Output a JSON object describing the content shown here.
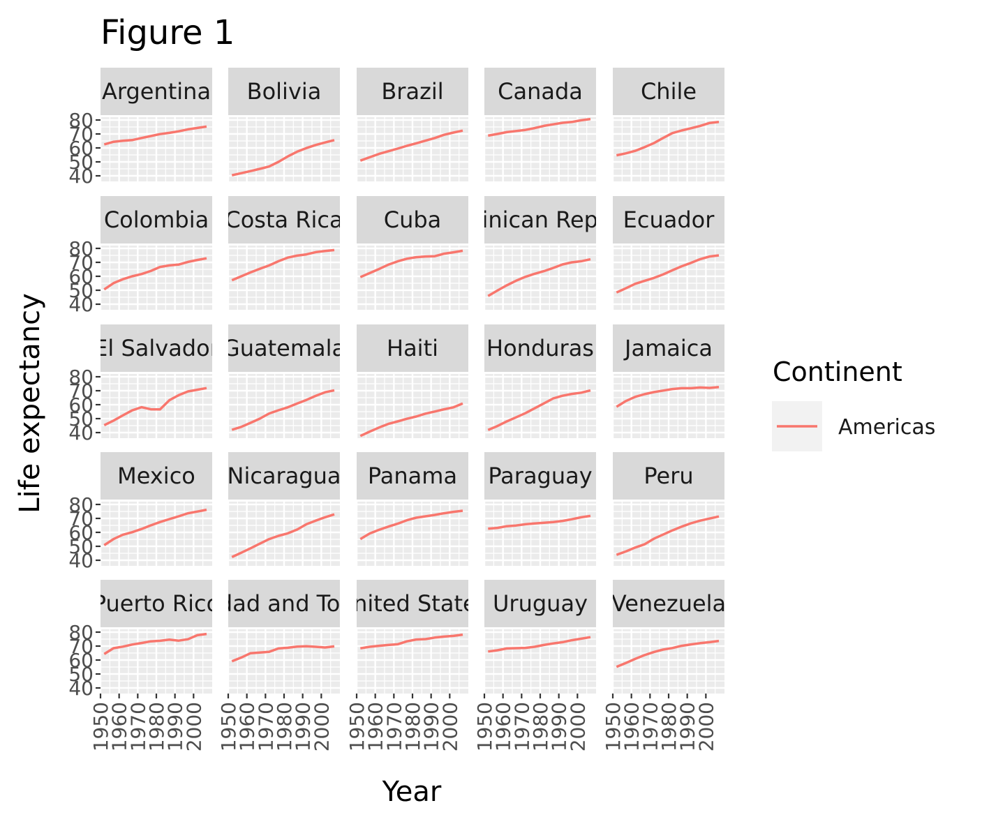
{
  "chart_data": {
    "type": "line",
    "title": "Figure 1",
    "xlabel": "Year",
    "ylabel": "Life expectancy",
    "x": [
      1952,
      1957,
      1962,
      1967,
      1972,
      1977,
      1982,
      1987,
      1992,
      1997,
      2002,
      2007
    ],
    "xlim": [
      1950,
      2010
    ],
    "ylim": [
      36,
      82
    ],
    "x_ticks": [
      "1950",
      "1960",
      "1970",
      "1980",
      "1990",
      "2000"
    ],
    "y_ticks": [
      "40",
      "50",
      "60",
      "70",
      "80"
    ],
    "grid": true,
    "legend": {
      "title": "Continent",
      "position": "right",
      "entries": [
        {
          "label": "Americas",
          "color": "#F8766D"
        }
      ]
    },
    "line_color": "#F8766D",
    "series": [
      {
        "name": "Argentina",
        "values": [
          62.5,
          64.4,
          65.1,
          65.6,
          67.1,
          68.5,
          69.9,
          70.8,
          71.9,
          73.3,
          74.3,
          75.3
        ]
      },
      {
        "name": "Bolivia",
        "values": [
          40.4,
          41.9,
          43.4,
          45.0,
          46.7,
          50.0,
          53.9,
          57.3,
          59.9,
          62.1,
          63.9,
          65.6
        ]
      },
      {
        "name": "Brazil",
        "values": [
          50.9,
          53.3,
          55.7,
          57.6,
          59.5,
          61.5,
          63.3,
          65.2,
          67.1,
          69.4,
          71.0,
          72.4
        ]
      },
      {
        "name": "Canada",
        "values": [
          68.8,
          70.0,
          71.3,
          72.1,
          72.9,
          74.2,
          75.8,
          76.9,
          78.0,
          78.6,
          79.8,
          80.7
        ]
      },
      {
        "name": "Chile",
        "values": [
          54.7,
          56.1,
          57.9,
          60.5,
          63.4,
          67.1,
          70.6,
          72.5,
          74.1,
          75.8,
          77.9,
          78.6
        ]
      },
      {
        "name": "Colombia",
        "values": [
          50.6,
          55.1,
          57.9,
          60.0,
          61.6,
          63.8,
          66.7,
          67.8,
          68.4,
          70.3,
          71.7,
          72.9
        ]
      },
      {
        "name": "Costa Rica",
        "values": [
          57.2,
          60.0,
          62.8,
          65.4,
          67.8,
          70.8,
          73.4,
          74.8,
          75.7,
          77.3,
          78.1,
          78.8
        ]
      },
      {
        "name": "Cuba",
        "values": [
          59.4,
          62.3,
          65.2,
          68.3,
          70.7,
          72.6,
          73.7,
          74.2,
          74.4,
          76.2,
          77.2,
          78.3
        ]
      },
      {
        "name": "Dominican Republic",
        "values": [
          45.9,
          49.8,
          53.5,
          56.8,
          59.6,
          61.8,
          63.7,
          66.0,
          68.5,
          70.0,
          70.8,
          72.2
        ]
      },
      {
        "name": "Ecuador",
        "values": [
          48.4,
          51.4,
          54.6,
          56.7,
          58.8,
          61.3,
          64.3,
          67.2,
          69.6,
          72.3,
          74.2,
          75.0
        ]
      },
      {
        "name": "El Salvador",
        "values": [
          45.3,
          48.6,
          52.3,
          55.9,
          58.2,
          56.7,
          56.6,
          63.2,
          66.8,
          69.5,
          70.7,
          71.9
        ]
      },
      {
        "name": "Guatemala",
        "values": [
          42.0,
          44.1,
          47.0,
          50.0,
          53.7,
          56.0,
          58.1,
          60.8,
          63.4,
          66.3,
          68.9,
          70.3
        ]
      },
      {
        "name": "Haiti",
        "values": [
          37.6,
          40.7,
          43.6,
          46.2,
          48.0,
          49.9,
          51.5,
          53.6,
          55.1,
          56.7,
          58.1,
          60.9
        ]
      },
      {
        "name": "Honduras",
        "values": [
          41.9,
          44.7,
          48.0,
          50.9,
          53.9,
          57.4,
          60.9,
          64.5,
          66.4,
          67.7,
          68.6,
          70.2
        ]
      },
      {
        "name": "Jamaica",
        "values": [
          58.5,
          62.6,
          65.6,
          67.5,
          69.0,
          70.1,
          71.2,
          71.8,
          71.8,
          72.3,
          72.0,
          72.6
        ]
      },
      {
        "name": "Mexico",
        "values": [
          50.8,
          55.2,
          58.3,
          60.1,
          62.4,
          65.0,
          67.4,
          69.5,
          71.5,
          73.7,
          74.9,
          76.2
        ]
      },
      {
        "name": "Nicaragua",
        "values": [
          42.3,
          45.4,
          48.6,
          51.9,
          55.2,
          57.5,
          59.3,
          62.0,
          65.8,
          68.4,
          70.8,
          72.9
        ]
      },
      {
        "name": "Panama",
        "values": [
          55.2,
          59.2,
          61.8,
          64.1,
          66.2,
          68.7,
          70.5,
          71.5,
          72.5,
          73.7,
          74.7,
          75.5
        ]
      },
      {
        "name": "Paraguay",
        "values": [
          62.6,
          63.2,
          64.4,
          64.9,
          65.8,
          66.4,
          66.9,
          67.4,
          68.2,
          69.4,
          70.8,
          71.8
        ]
      },
      {
        "name": "Peru",
        "values": [
          43.9,
          46.3,
          49.1,
          51.4,
          55.4,
          58.4,
          61.4,
          64.1,
          66.5,
          68.4,
          69.9,
          71.4
        ]
      },
      {
        "name": "Puerto Rico",
        "values": [
          64.3,
          68.5,
          69.6,
          71.1,
          72.2,
          73.4,
          73.8,
          74.6,
          73.9,
          74.9,
          77.8,
          78.7
        ]
      },
      {
        "name": "Trinidad and Tobago",
        "values": [
          59.1,
          61.8,
          64.9,
          65.4,
          65.9,
          68.3,
          68.8,
          69.6,
          69.9,
          69.5,
          68.98,
          69.8
        ]
      },
      {
        "name": "United States",
        "values": [
          68.4,
          69.5,
          70.2,
          70.8,
          71.3,
          73.4,
          74.7,
          75.0,
          76.1,
          76.8,
          77.3,
          78.2
        ]
      },
      {
        "name": "Uruguay",
        "values": [
          66.1,
          67.0,
          68.3,
          68.5,
          68.7,
          69.5,
          70.8,
          71.9,
          72.8,
          74.2,
          75.3,
          76.4
        ]
      },
      {
        "name": "Venezuela",
        "values": [
          55.1,
          57.9,
          60.8,
          63.5,
          65.7,
          67.5,
          68.6,
          70.2,
          71.2,
          72.1,
          72.8,
          73.7
        ]
      }
    ],
    "strip_labels": [
      "Argentina",
      "Bolivia",
      "Brazil",
      "Canada",
      "Chile",
      "Colombia",
      "Costa Rica",
      "Cuba",
      "Dominican Republic",
      "Ecuador",
      "El Salvador",
      "Guatemala",
      "Haiti",
      "Honduras",
      "Jamaica",
      "Mexico",
      "Nicaragua",
      "Panama",
      "Paraguay",
      "Peru",
      "Puerto Rico",
      "Trinidad and Tobago",
      "United States",
      "Uruguay",
      "Venezuela"
    ]
  }
}
